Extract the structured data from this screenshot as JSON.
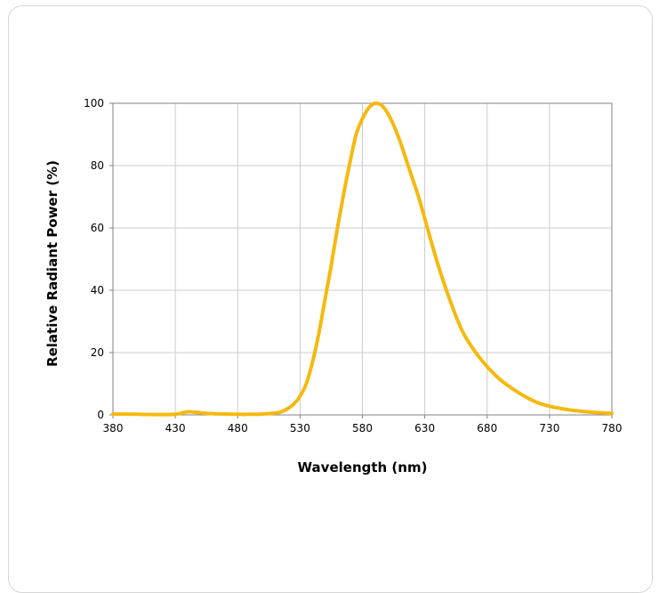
{
  "chart_data": {
    "type": "line",
    "title": "",
    "xlabel": "Wavelength (nm)",
    "ylabel": "Relative Radiant  Power (%)",
    "xlim": [
      380,
      780
    ],
    "ylim": [
      0,
      100
    ],
    "xticks": [
      380,
      430,
      480,
      530,
      580,
      630,
      680,
      730,
      780
    ],
    "yticks": [
      0,
      20,
      40,
      60,
      80,
      100
    ],
    "grid": true,
    "legend": "none",
    "series": [
      {
        "color": "#f5b90f",
        "x": [
          380,
          400,
          420,
          430,
          435,
          440,
          445,
          450,
          460,
          470,
          480,
          490,
          500,
          510,
          515,
          520,
          525,
          530,
          535,
          540,
          545,
          550,
          555,
          560,
          565,
          570,
          575,
          580,
          585,
          590,
          595,
          600,
          605,
          610,
          615,
          620,
          625,
          630,
          640,
          650,
          660,
          670,
          680,
          690,
          700,
          710,
          720,
          730,
          740,
          750,
          760,
          770,
          780
        ],
        "y": [
          0.3,
          0.2,
          0.1,
          0.2,
          0.6,
          1.0,
          0.9,
          0.7,
          0.4,
          0.3,
          0.2,
          0.2,
          0.3,
          0.6,
          1.0,
          2.0,
          3.5,
          6.0,
          10.0,
          17.0,
          26.0,
          37.0,
          48.0,
          60.0,
          71.0,
          81.0,
          90.0,
          95.0,
          98.5,
          100.0,
          99.5,
          97.0,
          93.0,
          88.0,
          82.0,
          76.0,
          70.0,
          63.0,
          49.0,
          37.0,
          27.0,
          20.5,
          15.5,
          11.5,
          8.5,
          6.0,
          4.0,
          2.8,
          2.0,
          1.4,
          1.0,
          0.7,
          0.5
        ]
      }
    ]
  }
}
